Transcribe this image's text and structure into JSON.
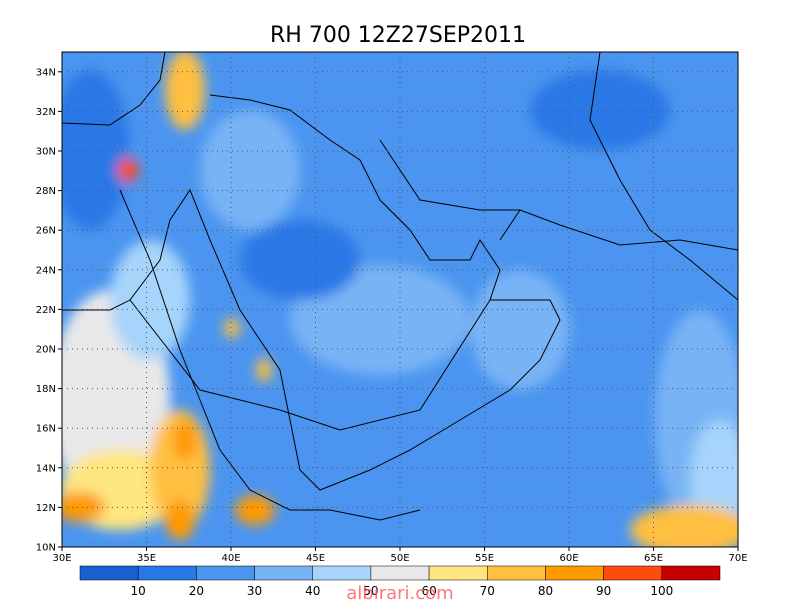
{
  "title": "RH 700  12Z27SEP2011",
  "x_tick_labels": [
    "30E",
    "35E",
    "40E",
    "45E",
    "50E",
    "55E",
    "60E",
    "65E",
    "70E"
  ],
  "y_tick_labels": [
    "10N",
    "12N",
    "14N",
    "16N",
    "18N",
    "20N",
    "22N",
    "24N",
    "26N",
    "28N",
    "30N",
    "32N",
    "34N"
  ],
  "colorbar": {
    "colors": [
      "#1a5fd0",
      "#2a78e6",
      "#4b95f0",
      "#78b4f5",
      "#a6d4fa",
      "#e8e8e8",
      "#ffe680",
      "#ffbf3f",
      "#ff9a00",
      "#ff4a10",
      "#c80000"
    ],
    "labels": [
      "10",
      "20",
      "30",
      "40",
      "50",
      "60",
      "70",
      "80",
      "90",
      "100"
    ]
  },
  "watermark": "albirari.com"
}
